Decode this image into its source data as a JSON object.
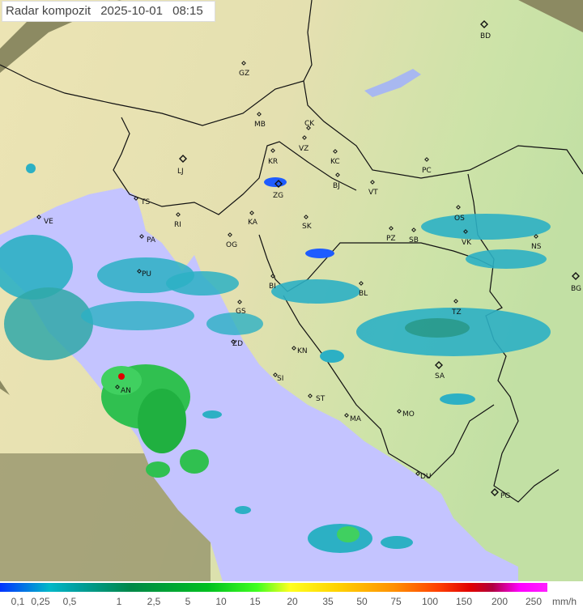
{
  "header": {
    "title": "Radar kompozit",
    "date": "2025-10-01",
    "time": "08:15"
  },
  "legend": {
    "unit": "mm/h",
    "values": [
      "0,1",
      "0,25",
      "0,5",
      "1",
      "2,5",
      "5",
      "10",
      "15",
      "20",
      "35",
      "50",
      "75",
      "100",
      "150",
      "200",
      "250"
    ]
  },
  "colors": {
    "sea": "#c4c4ff",
    "land": "#e6e2b4",
    "outside": "#8c8a62",
    "rain_light": "#1e5cff",
    "rain_moderate": "#2cb0c4",
    "rain_heavy": "#20c040",
    "rain_extreme": "#e00000"
  },
  "cities": [
    {
      "code": "BD",
      "capital": true
    },
    {
      "code": "GZ"
    },
    {
      "code": "MB"
    },
    {
      "code": "CK"
    },
    {
      "code": "VZ"
    },
    {
      "code": "KR"
    },
    {
      "code": "KC"
    },
    {
      "code": "LJ",
      "capital": true
    },
    {
      "code": "PC"
    },
    {
      "code": "ZG",
      "capital": true
    },
    {
      "code": "BJ"
    },
    {
      "code": "VT"
    },
    {
      "code": "TS"
    },
    {
      "code": "VE"
    },
    {
      "code": "RI"
    },
    {
      "code": "KA"
    },
    {
      "code": "SK"
    },
    {
      "code": "OS"
    },
    {
      "code": "PA"
    },
    {
      "code": "OG"
    },
    {
      "code": "PZ"
    },
    {
      "code": "SB"
    },
    {
      "code": "VK"
    },
    {
      "code": "NS"
    },
    {
      "code": "PU"
    },
    {
      "code": "BI"
    },
    {
      "code": "BL"
    },
    {
      "code": "BG",
      "capital": true
    },
    {
      "code": "GS"
    },
    {
      "code": "TZ"
    },
    {
      "code": "ZD"
    },
    {
      "code": "KN"
    },
    {
      "code": "SI"
    },
    {
      "code": "SA",
      "capital": true
    },
    {
      "code": "AN"
    },
    {
      "code": "ST"
    },
    {
      "code": "MA"
    },
    {
      "code": "MO"
    },
    {
      "code": "DU"
    },
    {
      "code": "PG",
      "capital": true
    }
  ]
}
